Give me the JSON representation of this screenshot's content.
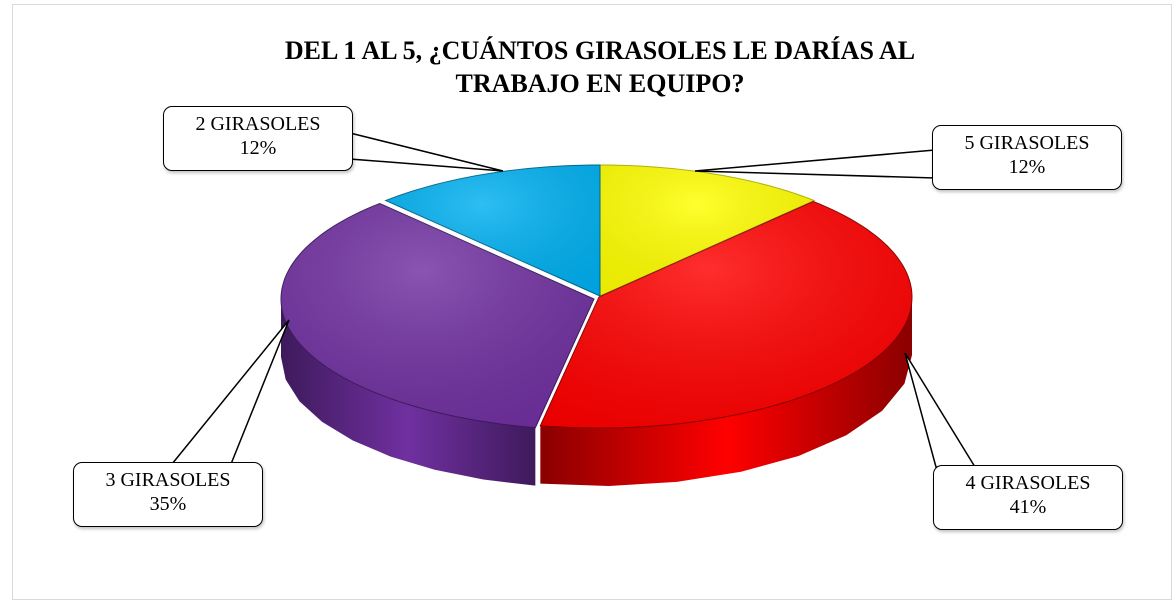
{
  "chart_data": {
    "type": "pie",
    "title": "DEL 1 AL 5, ¿CUÁNTOS GIRASOLES LE DARÍAS AL TRABAJO EN EQUIPO?",
    "title_lines": [
      "DEL 1 AL 5, ¿CUÁNTOS GIRASOLES LE DARÍAS AL",
      "TRABAJO EN EQUIPO?"
    ],
    "three_d": true,
    "slices": [
      {
        "label": "5 GIRASOLES",
        "value": 12,
        "value_label": "12%",
        "color": "#FFFF00",
        "dark": "#B3B300"
      },
      {
        "label": "4 GIRASOLES",
        "value": 41,
        "value_label": "41%",
        "color": "#FF0000",
        "dark": "#8A0000"
      },
      {
        "label": "3 GIRASOLES",
        "value": 35,
        "value_label": "35%",
        "color": "#7030A0",
        "dark": "#3E1A5C"
      },
      {
        "label": "2 GIRASOLES",
        "value": 12,
        "value_label": "12%",
        "color": "#00B0F0",
        "dark": "#00688F"
      }
    ]
  }
}
